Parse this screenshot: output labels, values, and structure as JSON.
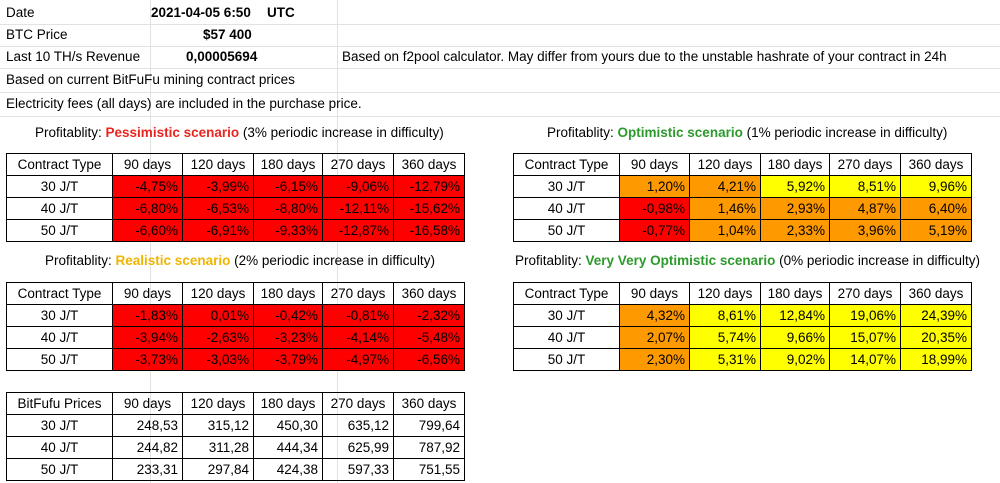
{
  "header": {
    "date_label": "Date",
    "date_value": "2021-04-05 6:50",
    "date_tz": "UTC",
    "btc_label": "BTC Price",
    "btc_value": "$57 400",
    "revenue_label": "Last 10 TH/s Revenue",
    "revenue_value": "0,00005694",
    "revenue_note": "Based on f2pool calculator. May differ from yours due to the unstable hashrate of your contract in 24h",
    "note_prices": "Based on current BitFuFu mining contract prices",
    "note_fees": "Electricity fees (all days) are included in the purchase price."
  },
  "columns": [
    "90 days",
    "120 days",
    "180 days",
    "270 days",
    "360 days"
  ],
  "rows": [
    "30 J/T",
    "40 J/T",
    "50 J/T"
  ],
  "colors": {
    "red": "#ff0000",
    "orange": "#ff9900",
    "yellow": "#ffff00",
    "text_pessimistic": "#e8261f",
    "text_optimistic": "#2c9a2c",
    "text_realistic": "#f0b400"
  },
  "scenarios": {
    "pessimistic": {
      "prefix": "Profitablity: ",
      "name": "Pessimistic scenario",
      "suffix": " (3% periodic increase in difficulty)",
      "corner": "Contract Type",
      "values": [
        [
          "-4,75%",
          "-3,99%",
          "-6,15%",
          "-9,06%",
          "-12,79%"
        ],
        [
          "-6,80%",
          "-6,53%",
          "-8,80%",
          "-12,11%",
          "-15,62%"
        ],
        [
          "-6,60%",
          "-6,91%",
          "-9,33%",
          "-12,87%",
          "-16,58%"
        ]
      ],
      "fills": [
        [
          "red",
          "red",
          "red",
          "red",
          "red"
        ],
        [
          "red",
          "red",
          "red",
          "red",
          "red"
        ],
        [
          "red",
          "red",
          "red",
          "red",
          "red"
        ]
      ]
    },
    "optimistic": {
      "prefix": "Profitablity: ",
      "name": "Optimistic scenario",
      "suffix": " (1% periodic increase in difficulty)",
      "corner": "Contract Type",
      "values": [
        [
          "1,20%",
          "4,21%",
          "5,92%",
          "8,51%",
          "9,96%"
        ],
        [
          "-0,98%",
          "1,46%",
          "2,93%",
          "4,87%",
          "6,40%"
        ],
        [
          "-0,77%",
          "1,04%",
          "2,33%",
          "3,96%",
          "5,19%"
        ]
      ],
      "fills": [
        [
          "orange",
          "orange",
          "yellow",
          "yellow",
          "yellow"
        ],
        [
          "red",
          "orange",
          "orange",
          "orange",
          "orange"
        ],
        [
          "red",
          "orange",
          "orange",
          "orange",
          "orange"
        ]
      ]
    },
    "realistic": {
      "prefix": "Profitablity: ",
      "name": "Realistic scenario",
      "suffix": " (2% periodic increase in difficulty)",
      "corner": "Contract Type",
      "values": [
        [
          "-1,83%",
          "0,01%",
          "-0,42%",
          "-0,81%",
          "-2,32%"
        ],
        [
          "-3,94%",
          "-2,63%",
          "-3,23%",
          "-4,14%",
          "-5,48%"
        ],
        [
          "-3,73%",
          "-3,03%",
          "-3,79%",
          "-4,97%",
          "-6,56%"
        ]
      ],
      "fills": [
        [
          "red",
          "red",
          "red",
          "red",
          "red"
        ],
        [
          "red",
          "red",
          "red",
          "red",
          "red"
        ],
        [
          "red",
          "red",
          "red",
          "red",
          "red"
        ]
      ]
    },
    "very_optimistic": {
      "prefix": "Profitablity: ",
      "name": "Very Very Optimistic scenario",
      "suffix": " (0% periodic increase in difficulty)",
      "corner": "Contract Type",
      "values": [
        [
          "4,32%",
          "8,61%",
          "12,84%",
          "19,06%",
          "24,39%"
        ],
        [
          "2,07%",
          "5,74%",
          "9,66%",
          "15,07%",
          "20,35%"
        ],
        [
          "2,30%",
          "5,31%",
          "9,02%",
          "14,07%",
          "18,99%"
        ]
      ],
      "fills": [
        [
          "orange",
          "yellow",
          "yellow",
          "yellow",
          "yellow"
        ],
        [
          "orange",
          "yellow",
          "yellow",
          "yellow",
          "yellow"
        ],
        [
          "orange",
          "yellow",
          "yellow",
          "yellow",
          "yellow"
        ]
      ]
    }
  },
  "prices": {
    "corner": "BitFufu Prices",
    "values": [
      [
        "248,53",
        "315,12",
        "450,30",
        "635,12",
        "799,64"
      ],
      [
        "244,82",
        "311,28",
        "444,34",
        "625,99",
        "787,92"
      ],
      [
        "233,31",
        "297,84",
        "424,38",
        "597,33",
        "751,55"
      ]
    ]
  }
}
